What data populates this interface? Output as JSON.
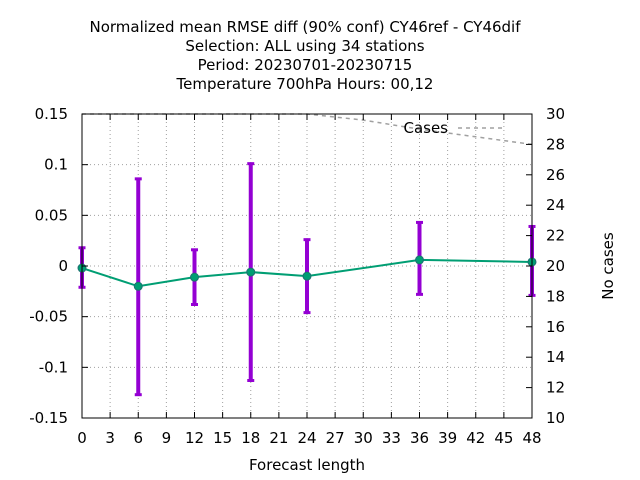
{
  "title_lines": [
    "Normalized mean RMSE diff (90% conf) CY46ref - CY46dif",
    "Selection: ALL using    34 stations",
    "Period: 20230701-20230715",
    "Temperature 700hPa   Hours:  00,12"
  ],
  "chart_data": {
    "type": "line",
    "xlabel": "Forecast length",
    "ylabel": "",
    "y2label": "No cases",
    "xlim": [
      0,
      48
    ],
    "ylim": [
      -0.15,
      0.15
    ],
    "y2lim": [
      10,
      30
    ],
    "x_ticks": [
      0,
      3,
      6,
      9,
      12,
      15,
      18,
      21,
      24,
      27,
      30,
      33,
      36,
      39,
      42,
      45,
      48
    ],
    "y_ticks": [
      0.15,
      0.1,
      0.05,
      0,
      -0.05,
      -0.1,
      -0.15
    ],
    "y_tick_labels": [
      "0.15",
      "0.1",
      "0.05",
      "0",
      "-0.05",
      "-0.1",
      "-0.15"
    ],
    "y2_ticks": [
      30,
      28,
      26,
      24,
      22,
      20,
      18,
      16,
      14,
      12,
      10
    ],
    "grid": true,
    "series": [
      {
        "style": "line-with-errorbars",
        "x": [
          0,
          6,
          12,
          18,
          24,
          36,
          48
        ],
        "y": [
          -0.002,
          -0.02,
          -0.011,
          -0.006,
          -0.01,
          0.006,
          0.004
        ],
        "y_low": [
          -0.021,
          -0.127,
          -0.038,
          -0.113,
          -0.046,
          -0.028,
          -0.029
        ],
        "y_high": [
          0.018,
          0.086,
          0.016,
          0.101,
          0.026,
          0.043,
          0.039
        ],
        "line_color": "#009e73",
        "errorbar_color": "#9400d3"
      },
      {
        "name": "Cases",
        "axis": "y2",
        "style": "dashed",
        "x": [
          0,
          6,
          12,
          18,
          24,
          30,
          36,
          42,
          48
        ],
        "y": [
          30,
          30,
          30,
          30,
          30,
          29.6,
          29.0,
          28.5,
          28.0
        ],
        "color": "#a0a0a0"
      }
    ],
    "legend": {
      "position": "top-right",
      "entries": [
        "Cases"
      ]
    }
  }
}
